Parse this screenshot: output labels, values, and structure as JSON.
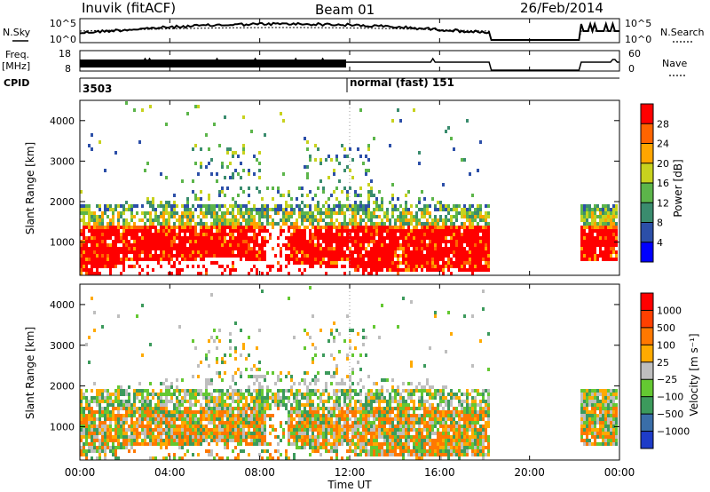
{
  "header": {
    "station": "Inuvik (fitACF)",
    "beam": "Beam 01",
    "date": "26/Feb/2014"
  },
  "labels": {
    "nsky": "N.Sky",
    "nsearch": "N.Search",
    "freq": "Freq.",
    "freq_unit": "[MHz]",
    "nave": "Nave",
    "cpid": "CPID",
    "cpid_value": "3503",
    "cpid_mode": "normal (fast) 151",
    "noise_top": "10^5",
    "noise_bottom": "10^0",
    "noise_top_right": "10^5",
    "noise_bottom_right": "10^0",
    "freq_top": "18",
    "freq_bottom": "8",
    "nave_top": "60",
    "nave_bottom": "0",
    "slant_range": "Slant Range [km]",
    "power_cb": "Power [dB]",
    "velocity_cb": "Velocity [m s⁻¹]",
    "xlabel": "Time UT"
  },
  "colors": {
    "power": [
      "#0000ff",
      "#2c4fa8",
      "#3a8c6e",
      "#5cb54a",
      "#c8d21e",
      "#ffa500",
      "#ff6400",
      "#ff0000"
    ],
    "velocity": [
      "#1e3cc8",
      "#3a6ea8",
      "#3c9a5c",
      "#64c832",
      "#bebebe",
      "#ffaa00",
      "#ff7800",
      "#ff4000",
      "#ff0000"
    ]
  },
  "chart_data": {
    "type": "heatmap",
    "x_ticks": [
      "00:00",
      "04:00",
      "08:00",
      "12:00",
      "16:00",
      "20:00",
      "00:00"
    ],
    "xlim": [
      0,
      24
    ],
    "y_ticks": [
      1000,
      2000,
      3000,
      4000
    ],
    "ylim": [
      180,
      4500
    ],
    "power_colorbar": {
      "ticks": [
        "4",
        "8",
        "12",
        "16",
        "20",
        "24",
        "28"
      ]
    },
    "velocity_colorbar": {
      "ticks": [
        "1000",
        "500",
        "100",
        "25",
        "−25",
        "−100",
        "−500",
        "−1000"
      ]
    },
    "data_gaps_hours": [
      [
        18.2,
        22.3
      ]
    ],
    "cpid_change_hour": 12.0
  }
}
